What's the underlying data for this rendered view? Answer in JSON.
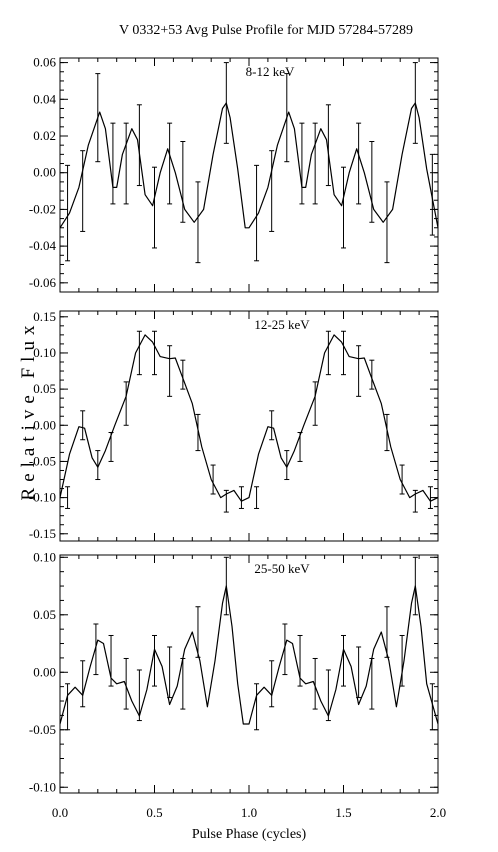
{
  "title": "V 0332+53  Avg Pulse Profile for MJD 57284-57289",
  "xlabel": "Pulse Phase (cycles)",
  "ylabel": "Relative Flux",
  "chart_data": [
    {
      "type": "line",
      "label": "8-12 keV",
      "xlim": [
        0,
        2
      ],
      "ylim": [
        -0.065,
        0.0625
      ],
      "yticks": [
        -0.06,
        -0.04,
        -0.02,
        0.0,
        0.02,
        0.04,
        0.06
      ],
      "ytick_labels": [
        "-0.06",
        "-0.04",
        "-0.02",
        "0.00",
        "0.02",
        "0.04",
        "0.06"
      ],
      "grid": false,
      "points": [
        {
          "x": 0.04,
          "y": -0.022,
          "err": 0.026
        },
        {
          "x": 0.12,
          "y": -0.01,
          "err": 0.022
        },
        {
          "x": 0.2,
          "y": 0.03,
          "err": 0.024
        },
        {
          "x": 0.28,
          "y": 0.005,
          "err": 0.022
        },
        {
          "x": 0.35,
          "y": 0.005,
          "err": 0.022
        },
        {
          "x": 0.42,
          "y": 0.015,
          "err": 0.022
        },
        {
          "x": 0.5,
          "y": -0.019,
          "err": 0.022
        },
        {
          "x": 0.58,
          "y": 0.005,
          "err": 0.022
        },
        {
          "x": 0.65,
          "y": -0.005,
          "err": 0.022
        },
        {
          "x": 0.73,
          "y": -0.027,
          "err": 0.022
        },
        {
          "x": 0.88,
          "y": 0.038,
          "err": 0.022
        },
        {
          "x": 1.04,
          "y": -0.022,
          "err": 0.026
        },
        {
          "x": 1.12,
          "y": -0.01,
          "err": 0.022
        },
        {
          "x": 1.2,
          "y": 0.03,
          "err": 0.024
        },
        {
          "x": 1.28,
          "y": 0.005,
          "err": 0.022
        },
        {
          "x": 1.35,
          "y": 0.005,
          "err": 0.022
        },
        {
          "x": 1.42,
          "y": 0.015,
          "err": 0.022
        },
        {
          "x": 1.5,
          "y": -0.019,
          "err": 0.022
        },
        {
          "x": 1.58,
          "y": 0.005,
          "err": 0.022
        },
        {
          "x": 1.65,
          "y": -0.005,
          "err": 0.022
        },
        {
          "x": 1.73,
          "y": -0.027,
          "err": 0.022
        },
        {
          "x": 1.88,
          "y": 0.038,
          "err": 0.022
        },
        {
          "x": 1.97,
          "y": -0.012,
          "err": 0.022
        }
      ],
      "curve": [
        [
          0.0,
          -0.03
        ],
        [
          0.05,
          -0.022
        ],
        [
          0.1,
          -0.008
        ],
        [
          0.15,
          0.015
        ],
        [
          0.21,
          0.033
        ],
        [
          0.24,
          0.024
        ],
        [
          0.28,
          -0.008
        ],
        [
          0.3,
          -0.008
        ],
        [
          0.33,
          0.01
        ],
        [
          0.38,
          0.024
        ],
        [
          0.41,
          0.018
        ],
        [
          0.45,
          -0.012
        ],
        [
          0.49,
          -0.018
        ],
        [
          0.53,
          0.0
        ],
        [
          0.57,
          0.013
        ],
        [
          0.61,
          0.0
        ],
        [
          0.66,
          -0.02
        ],
        [
          0.71,
          -0.027
        ],
        [
          0.76,
          -0.02
        ],
        [
          0.81,
          0.01
        ],
        [
          0.86,
          0.035
        ],
        [
          0.88,
          0.038
        ],
        [
          0.9,
          0.03
        ],
        [
          0.94,
          0.002
        ],
        [
          0.98,
          -0.03
        ],
        [
          1.0,
          -0.03
        ],
        [
          1.05,
          -0.022
        ],
        [
          1.1,
          -0.008
        ],
        [
          1.15,
          0.015
        ],
        [
          1.21,
          0.033
        ],
        [
          1.24,
          0.024
        ],
        [
          1.28,
          -0.008
        ],
        [
          1.3,
          -0.008
        ],
        [
          1.33,
          0.01
        ],
        [
          1.38,
          0.024
        ],
        [
          1.41,
          0.018
        ],
        [
          1.45,
          -0.012
        ],
        [
          1.49,
          -0.018
        ],
        [
          1.53,
          0.0
        ],
        [
          1.57,
          0.013
        ],
        [
          1.61,
          0.0
        ],
        [
          1.66,
          -0.02
        ],
        [
          1.71,
          -0.027
        ],
        [
          1.76,
          -0.02
        ],
        [
          1.81,
          0.01
        ],
        [
          1.86,
          0.035
        ],
        [
          1.88,
          0.038
        ],
        [
          1.9,
          0.03
        ],
        [
          1.94,
          0.002
        ],
        [
          2.0,
          -0.03
        ]
      ]
    },
    {
      "type": "line",
      "label": "12-25 keV",
      "xlim": [
        0,
        2
      ],
      "ylim": [
        -0.16,
        0.158
      ],
      "yticks": [
        -0.15,
        -0.1,
        -0.05,
        0.0,
        0.05,
        0.1,
        0.15
      ],
      "ytick_labels": [
        "-0.15",
        "-0.10",
        "-0.05",
        "0.00",
        "0.05",
        "0.10",
        "0.15"
      ],
      "grid": false,
      "points": [
        {
          "x": 0.04,
          "y": -0.1,
          "err": 0.015
        },
        {
          "x": 0.12,
          "y": 0.0,
          "err": 0.02
        },
        {
          "x": 0.2,
          "y": -0.055,
          "err": 0.02
        },
        {
          "x": 0.27,
          "y": -0.03,
          "err": 0.02
        },
        {
          "x": 0.35,
          "y": 0.03,
          "err": 0.03
        },
        {
          "x": 0.42,
          "y": 0.1,
          "err": 0.03
        },
        {
          "x": 0.5,
          "y": 0.1,
          "err": 0.03
        },
        {
          "x": 0.58,
          "y": 0.075,
          "err": 0.035
        },
        {
          "x": 0.65,
          "y": 0.07,
          "err": 0.02
        },
        {
          "x": 0.73,
          "y": -0.01,
          "err": 0.025
        },
        {
          "x": 0.81,
          "y": -0.075,
          "err": 0.02
        },
        {
          "x": 0.88,
          "y": -0.105,
          "err": 0.015
        },
        {
          "x": 0.96,
          "y": -0.1,
          "err": 0.015
        },
        {
          "x": 1.04,
          "y": -0.1,
          "err": 0.015
        },
        {
          "x": 1.12,
          "y": 0.0,
          "err": 0.02
        },
        {
          "x": 1.2,
          "y": -0.055,
          "err": 0.02
        },
        {
          "x": 1.27,
          "y": -0.03,
          "err": 0.02
        },
        {
          "x": 1.35,
          "y": 0.03,
          "err": 0.03
        },
        {
          "x": 1.42,
          "y": 0.1,
          "err": 0.03
        },
        {
          "x": 1.5,
          "y": 0.1,
          "err": 0.03
        },
        {
          "x": 1.58,
          "y": 0.075,
          "err": 0.035
        },
        {
          "x": 1.65,
          "y": 0.07,
          "err": 0.02
        },
        {
          "x": 1.73,
          "y": -0.01,
          "err": 0.025
        },
        {
          "x": 1.81,
          "y": -0.075,
          "err": 0.02
        },
        {
          "x": 1.88,
          "y": -0.105,
          "err": 0.015
        },
        {
          "x": 1.96,
          "y": -0.1,
          "err": 0.015
        }
      ],
      "curve": [
        [
          0.0,
          -0.1
        ],
        [
          0.05,
          -0.04
        ],
        [
          0.1,
          -0.002
        ],
        [
          0.13,
          -0.004
        ],
        [
          0.17,
          -0.045
        ],
        [
          0.2,
          -0.058
        ],
        [
          0.24,
          -0.035
        ],
        [
          0.29,
          0.0
        ],
        [
          0.35,
          0.04
        ],
        [
          0.4,
          0.1
        ],
        [
          0.45,
          0.125
        ],
        [
          0.49,
          0.115
        ],
        [
          0.53,
          0.095
        ],
        [
          0.58,
          0.092
        ],
        [
          0.61,
          0.093
        ],
        [
          0.65,
          0.065
        ],
        [
          0.7,
          0.03
        ],
        [
          0.75,
          -0.03
        ],
        [
          0.8,
          -0.075
        ],
        [
          0.85,
          -0.1
        ],
        [
          0.88,
          -0.095
        ],
        [
          0.92,
          -0.09
        ],
        [
          0.96,
          -0.105
        ],
        [
          1.0,
          -0.1
        ],
        [
          1.05,
          -0.04
        ],
        [
          1.1,
          -0.002
        ],
        [
          1.13,
          -0.004
        ],
        [
          1.17,
          -0.045
        ],
        [
          1.2,
          -0.058
        ],
        [
          1.24,
          -0.035
        ],
        [
          1.29,
          0.0
        ],
        [
          1.35,
          0.04
        ],
        [
          1.4,
          0.1
        ],
        [
          1.45,
          0.125
        ],
        [
          1.49,
          0.115
        ],
        [
          1.53,
          0.095
        ],
        [
          1.58,
          0.092
        ],
        [
          1.61,
          0.093
        ],
        [
          1.65,
          0.065
        ],
        [
          1.7,
          0.03
        ],
        [
          1.75,
          -0.03
        ],
        [
          1.8,
          -0.075
        ],
        [
          1.85,
          -0.1
        ],
        [
          1.88,
          -0.095
        ],
        [
          1.92,
          -0.09
        ],
        [
          1.96,
          -0.105
        ],
        [
          2.0,
          -0.1
        ]
      ]
    },
    {
      "type": "line",
      "label": "25-50 keV",
      "xlim": [
        0,
        2
      ],
      "ylim": [
        -0.105,
        0.102
      ],
      "yticks": [
        -0.1,
        -0.05,
        0.0,
        0.05,
        0.1
      ],
      "ytick_labels": [
        "-0.10",
        "-0.05",
        "0.00",
        "0.05",
        "0.10"
      ],
      "grid": false,
      "points": [
        {
          "x": 0.04,
          "y": -0.03,
          "err": 0.02
        },
        {
          "x": 0.12,
          "y": -0.01,
          "err": 0.02
        },
        {
          "x": 0.19,
          "y": 0.02,
          "err": 0.022
        },
        {
          "x": 0.27,
          "y": 0.01,
          "err": 0.022
        },
        {
          "x": 0.35,
          "y": -0.01,
          "err": 0.022
        },
        {
          "x": 0.42,
          "y": -0.02,
          "err": 0.022
        },
        {
          "x": 0.5,
          "y": 0.01,
          "err": 0.022
        },
        {
          "x": 0.58,
          "y": 0.0,
          "err": 0.022
        },
        {
          "x": 0.65,
          "y": -0.01,
          "err": 0.022
        },
        {
          "x": 0.73,
          "y": 0.035,
          "err": 0.022
        },
        {
          "x": 0.88,
          "y": 0.075,
          "err": 0.025
        },
        {
          "x": 1.04,
          "y": -0.03,
          "err": 0.02
        },
        {
          "x": 1.12,
          "y": -0.01,
          "err": 0.02
        },
        {
          "x": 1.19,
          "y": 0.02,
          "err": 0.022
        },
        {
          "x": 1.27,
          "y": 0.01,
          "err": 0.022
        },
        {
          "x": 1.35,
          "y": -0.01,
          "err": 0.022
        },
        {
          "x": 1.42,
          "y": -0.02,
          "err": 0.022
        },
        {
          "x": 1.5,
          "y": 0.01,
          "err": 0.022
        },
        {
          "x": 1.58,
          "y": 0.0,
          "err": 0.022
        },
        {
          "x": 1.65,
          "y": -0.01,
          "err": 0.022
        },
        {
          "x": 1.73,
          "y": 0.035,
          "err": 0.022
        },
        {
          "x": 1.81,
          "y": 0.01,
          "err": 0.022
        },
        {
          "x": 1.88,
          "y": 0.075,
          "err": 0.025
        },
        {
          "x": 1.97,
          "y": -0.03,
          "err": 0.02
        }
      ],
      "curve": [
        [
          0.0,
          -0.045
        ],
        [
          0.04,
          -0.02
        ],
        [
          0.08,
          -0.013
        ],
        [
          0.12,
          -0.02
        ],
        [
          0.16,
          0.005
        ],
        [
          0.2,
          0.028
        ],
        [
          0.23,
          0.025
        ],
        [
          0.27,
          -0.005
        ],
        [
          0.3,
          -0.01
        ],
        [
          0.34,
          -0.008
        ],
        [
          0.38,
          -0.025
        ],
        [
          0.42,
          -0.038
        ],
        [
          0.46,
          -0.015
        ],
        [
          0.5,
          0.02
        ],
        [
          0.54,
          0.005
        ],
        [
          0.58,
          -0.028
        ],
        [
          0.62,
          -0.012
        ],
        [
          0.66,
          0.02
        ],
        [
          0.7,
          0.035
        ],
        [
          0.74,
          0.01
        ],
        [
          0.78,
          -0.03
        ],
        [
          0.82,
          0.01
        ],
        [
          0.86,
          0.06
        ],
        [
          0.88,
          0.075
        ],
        [
          0.91,
          0.04
        ],
        [
          0.94,
          -0.01
        ],
        [
          0.97,
          -0.045
        ],
        [
          1.0,
          -0.045
        ],
        [
          1.04,
          -0.02
        ],
        [
          1.08,
          -0.013
        ],
        [
          1.12,
          -0.02
        ],
        [
          1.16,
          0.005
        ],
        [
          1.2,
          0.028
        ],
        [
          1.23,
          0.025
        ],
        [
          1.27,
          -0.005
        ],
        [
          1.3,
          -0.01
        ],
        [
          1.34,
          -0.008
        ],
        [
          1.38,
          -0.025
        ],
        [
          1.42,
          -0.038
        ],
        [
          1.46,
          -0.015
        ],
        [
          1.5,
          0.02
        ],
        [
          1.54,
          0.005
        ],
        [
          1.58,
          -0.028
        ],
        [
          1.62,
          -0.012
        ],
        [
          1.66,
          0.02
        ],
        [
          1.7,
          0.035
        ],
        [
          1.74,
          0.01
        ],
        [
          1.78,
          -0.03
        ],
        [
          1.82,
          0.01
        ],
        [
          1.86,
          0.06
        ],
        [
          1.88,
          0.075
        ],
        [
          1.91,
          0.04
        ],
        [
          1.94,
          -0.01
        ],
        [
          2.0,
          -0.045
        ]
      ]
    }
  ],
  "xticks": [
    0.0,
    0.5,
    1.0,
    1.5,
    2.0
  ],
  "xtick_labels": [
    "0.0",
    "0.5",
    "1.0",
    "1.5",
    "2.0"
  ]
}
